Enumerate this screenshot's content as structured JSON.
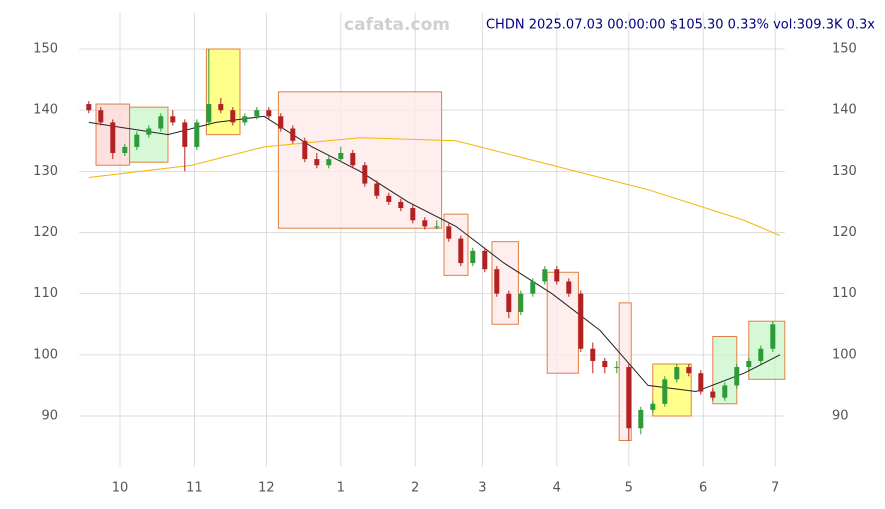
{
  "chart_data": {
    "type": "candlestick",
    "title": "CHDN 2025.07.03 00:00:00 $105.30 0.33% vol:309.3K 0.3x",
    "watermark": "cafata.com",
    "x": [
      -13,
      -8,
      -3,
      2,
      7,
      12,
      17,
      22,
      27,
      32,
      37,
      42,
      47,
      52,
      57,
      62,
      67,
      72,
      77,
      82,
      87,
      92,
      97,
      102,
      107,
      112,
      117,
      122,
      127,
      132,
      137,
      142,
      147,
      152,
      157,
      162,
      167,
      172,
      177,
      182,
      187,
      192,
      197,
      202,
      207,
      212,
      217,
      222,
      227,
      232,
      237,
      242,
      247,
      252,
      257,
      262,
      267,
      272
    ],
    "open": [
      141,
      140,
      138,
      133,
      134,
      136,
      137,
      139,
      138,
      134,
      138,
      141,
      140,
      138,
      139,
      140,
      139,
      137,
      135,
      132,
      131,
      132,
      133,
      131,
      128,
      126,
      125,
      124,
      122,
      121,
      121,
      119,
      115,
      117,
      114,
      110,
      107,
      110,
      112,
      114,
      112,
      110,
      101,
      99,
      98,
      98,
      88,
      91,
      92,
      96,
      98,
      97,
      94,
      93,
      95,
      98,
      99,
      101
    ],
    "high": [
      141.5,
      140.5,
      138.5,
      134.5,
      136.5,
      137.5,
      139.5,
      140,
      138.5,
      138.5,
      150,
      142,
      140.5,
      139.5,
      140.5,
      140.5,
      139.5,
      137.5,
      135.5,
      133,
      132.5,
      134,
      133.5,
      131.5,
      128.5,
      126.5,
      125.5,
      124.5,
      122.5,
      122,
      121.5,
      119.5,
      117.5,
      117.5,
      114.5,
      110.5,
      110.5,
      112.5,
      114.5,
      114.5,
      112.5,
      110.5,
      102,
      99.5,
      99,
      98.5,
      91.5,
      92.5,
      96.5,
      98.5,
      98.5,
      97.5,
      94.5,
      95.5,
      98.5,
      99.5,
      101.5,
      105.5
    ],
    "low": [
      139.5,
      137.5,
      132,
      132.5,
      133.5,
      135.5,
      136.5,
      137.5,
      130,
      133.5,
      137.5,
      139.5,
      137.5,
      137.5,
      138.5,
      138.5,
      136.5,
      134.5,
      131.5,
      130.5,
      130.5,
      131.5,
      130.5,
      127.5,
      125.5,
      124.5,
      123.5,
      121.5,
      120.5,
      120.5,
      118.5,
      114.5,
      114.5,
      113.5,
      109.5,
      106,
      106.5,
      109.5,
      111.5,
      111.5,
      109.5,
      100.5,
      97,
      97,
      97,
      86,
      87,
      90.5,
      91.5,
      95.5,
      96.5,
      93.5,
      92.5,
      92.5,
      94.5,
      97.5,
      98.5,
      100.5
    ],
    "close": [
      140,
      138,
      133,
      134,
      136,
      137,
      139,
      138,
      134,
      138,
      141,
      140,
      138,
      139,
      140,
      139,
      137,
      135,
      132,
      131,
      132,
      133,
      131,
      128,
      126,
      125,
      124,
      122,
      121,
      121,
      119,
      115,
      117,
      114,
      110,
      107,
      110,
      112,
      114,
      112,
      110,
      101,
      99,
      98,
      98,
      88,
      91,
      92,
      96,
      98,
      97,
      94,
      93,
      95,
      98,
      99,
      101,
      105
    ],
    "up_color": "#2e9a3a",
    "down_color": "#b22222",
    "lines": [
      {
        "color": "#f2b705",
        "x": [
          -13,
          30,
          60,
          100,
          140,
          180,
          220,
          260,
          275
        ],
        "values": [
          129,
          131,
          134,
          135.5,
          135,
          131,
          127,
          122,
          119.5
        ]
      },
      {
        "color": "#222222",
        "x": [
          -13,
          20,
          40,
          60,
          80,
          100,
          120,
          140,
          160,
          180,
          200,
          220,
          240,
          260,
          275
        ],
        "values": [
          138,
          136,
          138,
          139,
          134,
          130,
          125,
          121,
          115,
          110,
          104,
          95,
          94,
          97,
          100
        ]
      }
    ],
    "zones": [
      {
        "x": [
          -10,
          4
        ],
        "y": [
          131,
          141
        ],
        "color": "#ffd6d6"
      },
      {
        "x": [
          4,
          20
        ],
        "y": [
          131.5,
          140.5
        ],
        "color": "#c8f5c8"
      },
      {
        "x": [
          36,
          50
        ],
        "y": [
          136,
          150
        ],
        "color": "#ffff66"
      },
      {
        "x": [
          66,
          134
        ],
        "y": [
          120.7,
          143
        ],
        "color": "#fde8e8"
      },
      {
        "x": [
          135,
          145
        ],
        "y": [
          113,
          123
        ],
        "color": "#fde8e8"
      },
      {
        "x": [
          155,
          166
        ],
        "y": [
          105,
          118.5
        ],
        "color": "#fde8e8"
      },
      {
        "x": [
          178,
          191
        ],
        "y": [
          97,
          113.5
        ],
        "color": "#fde8e8"
      },
      {
        "x": [
          208,
          213
        ],
        "y": [
          86,
          108.5
        ],
        "color": "#fde8e8"
      },
      {
        "x": [
          222,
          238
        ],
        "y": [
          90,
          98.5
        ],
        "color": "#ffff66"
      },
      {
        "x": [
          247,
          257
        ],
        "y": [
          92,
          103
        ],
        "color": "#c8f5c8"
      },
      {
        "x": [
          262,
          277
        ],
        "y": [
          96,
          105.5
        ],
        "color": "#c8f5c8"
      }
    ],
    "xlim": [
      -17,
      277
    ],
    "xticks": [
      {
        "value": 0,
        "label": "10"
      },
      {
        "value": 31,
        "label": "11"
      },
      {
        "value": 61,
        "label": "12"
      },
      {
        "value": 92,
        "label": "1"
      },
      {
        "value": 123,
        "label": "2"
      },
      {
        "value": 151,
        "label": "3"
      },
      {
        "value": 182,
        "label": "4"
      },
      {
        "value": 212,
        "label": "5"
      },
      {
        "value": 243,
        "label": "6"
      },
      {
        "value": 273,
        "label": "7"
      }
    ],
    "ylim": [
      85,
      156
    ],
    "yticks": [
      90,
      100,
      110,
      120,
      130,
      140,
      150
    ],
    "grid": true
  }
}
